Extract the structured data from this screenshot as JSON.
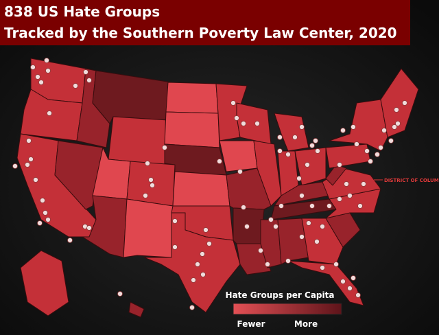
{
  "header": {
    "title_line1": "838 US Hate Groups",
    "title_line2": "Tracked by the Southern Poverty Law Center, 2020"
  },
  "map": {
    "dc_label": "DISTRICT OF COLUMBIA"
  },
  "legend": {
    "title": "Hate Groups per Capita",
    "low_label": "Fewer",
    "high_label": "More"
  }
}
